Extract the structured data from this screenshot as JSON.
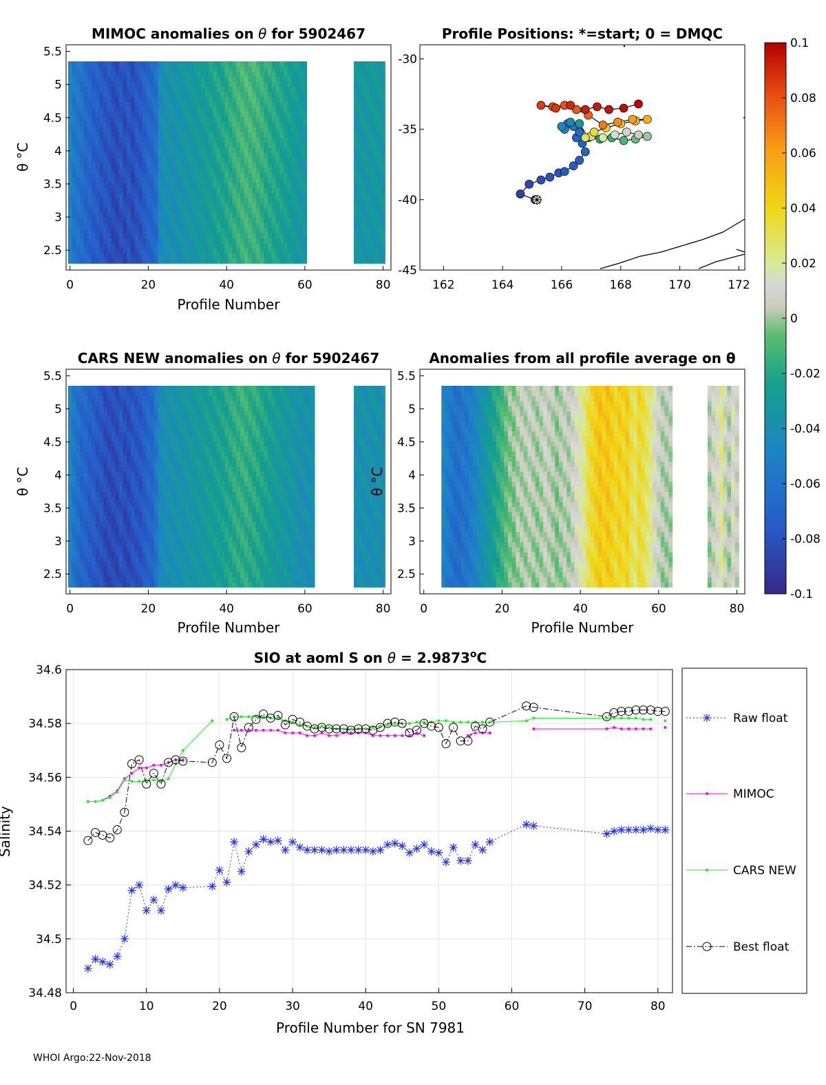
{
  "footer": "WHOI Argo:22-Nov-2018",
  "panels": {
    "mimoc": {
      "title_prefix": "MIMOC anomalies on",
      "title_suffix": " for 5902467",
      "ylabel": "θ °C",
      "xlabel": "Profile Number",
      "xticks": [
        "0",
        "20",
        "40",
        "60",
        "80"
      ],
      "yticks": [
        "2.5",
        "3",
        "3.5",
        "4",
        "4.5",
        "5",
        "5.5"
      ]
    },
    "positions": {
      "title": "Profile Positions: *=start; 0 = DMQC",
      "xticks": [
        "162",
        "164",
        "166",
        "168",
        "170",
        "172"
      ],
      "yticks": [
        "-30",
        "-35",
        "-40",
        "-45"
      ]
    },
    "cars": {
      "title_prefix": "CARS NEW anomalies on",
      "title_suffix": " for 5902467",
      "ylabel": "θ °C",
      "xlabel": "Profile Number",
      "xticks": [
        "0",
        "20",
        "40",
        "60",
        "80"
      ],
      "yticks": [
        "2.5",
        "3",
        "3.5",
        "4",
        "4.5",
        "5",
        "5.5"
      ]
    },
    "allavg": {
      "title": "Anomalies from all profile average on θ",
      "ylabel": "θ °C",
      "xlabel": "Profile Number",
      "xticks": [
        "0",
        "20",
        "40",
        "60",
        "80"
      ],
      "yticks": [
        "2.5",
        "3",
        "3.5",
        "4",
        "4.5",
        "5",
        "5.5"
      ]
    },
    "colorbar": {
      "ticks": [
        "0.1",
        "0.08",
        "0.06",
        "0.04",
        "0.02",
        "0",
        "-0.02",
        "-0.04",
        "-0.06",
        "-0.08",
        "-0.1"
      ]
    }
  },
  "chart_data": [
    {
      "type": "heatmap",
      "id": "mimoc",
      "title": "MIMOC anomalies on θ  for 5902467",
      "xlabel": "Profile Number",
      "ylabel": "θ °C",
      "xlim": [
        -1,
        82
      ],
      "ylim": [
        2.2,
        5.6
      ],
      "clim": [
        -0.1,
        0.1
      ],
      "profile_anomaly": [
        -0.05,
        -0.06,
        -0.06,
        -0.065,
        -0.07,
        -0.07,
        -0.075,
        -0.075,
        -0.08,
        -0.08,
        -0.08,
        -0.085,
        -0.085,
        -0.08,
        -0.085,
        -0.08,
        -0.085,
        -0.08,
        -0.08,
        -0.075,
        -0.07,
        -0.07,
        -0.065,
        -0.045,
        -0.04,
        -0.04,
        -0.04,
        -0.04,
        -0.038,
        -0.036,
        -0.035,
        -0.034,
        -0.034,
        -0.032,
        -0.03,
        -0.03,
        -0.028,
        -0.026,
        -0.025,
        -0.025,
        -0.022,
        -0.02,
        -0.018,
        -0.016,
        -0.015,
        -0.014,
        -0.014,
        -0.015,
        -0.016,
        -0.018,
        -0.02,
        -0.022,
        -0.023,
        -0.024,
        -0.025,
        -0.027,
        -0.028,
        -0.03,
        -0.032,
        -0.033,
        -0.034,
        null,
        null,
        null,
        null,
        null,
        null,
        null,
        null,
        null,
        null,
        null,
        null,
        -0.035,
        -0.035,
        -0.035,
        -0.034,
        -0.034,
        -0.034,
        -0.034,
        -0.034
      ]
    },
    {
      "type": "scatter",
      "id": "positions",
      "title": "Profile Positions: *=start; 0 = DMQC",
      "xlim": [
        161.2,
        172.2
      ],
      "ylim": [
        -45,
        -29
      ],
      "lon": [
        165.1,
        164.6,
        164.9,
        165.3,
        165.6,
        165.9,
        166.1,
        166.4,
        166.6,
        166.8,
        166.7,
        166.5,
        166.6,
        166.4,
        166.2,
        166.1,
        166.0,
        166.3,
        166.6,
        166.9,
        167.3,
        167.7,
        168.1,
        168.5,
        168.9,
        168.6,
        168.2,
        167.8,
        167.4,
        167.0,
        166.8,
        167.1,
        167.5,
        168.0,
        168.5,
        168.9,
        168.4,
        167.9,
        167.4,
        166.9,
        166.5,
        166.1,
        165.7,
        165.3,
        165.8,
        166.3,
        166.8,
        167.2,
        167.6,
        168.1,
        168.6
      ],
      "lat": [
        -40.0,
        -39.6,
        -38.9,
        -38.6,
        -38.4,
        -38.1,
        -38.0,
        -37.6,
        -37.2,
        -36.6,
        -36.0,
        -35.6,
        -35.2,
        -34.8,
        -34.6,
        -35.0,
        -34.8,
        -34.5,
        -34.6,
        -35.6,
        -35.7,
        -35.6,
        -35.8,
        -35.7,
        -35.5,
        -35.4,
        -35.2,
        -35.4,
        -35.6,
        -35.5,
        -35.6,
        -35.2,
        -34.9,
        -34.6,
        -34.4,
        -34.3,
        -34.3,
        -34.5,
        -34.7,
        -34.0,
        -33.6,
        -33.3,
        -33.4,
        -33.3,
        -33.5,
        -33.3,
        -33.6,
        -33.4,
        -33.6,
        -33.5,
        -33.2
      ],
      "colorvalue": [
        -0.09,
        -0.088,
        -0.085,
        -0.082,
        -0.08,
        -0.078,
        -0.076,
        -0.074,
        -0.072,
        -0.07,
        -0.07,
        -0.068,
        -0.065,
        -0.06,
        -0.055,
        -0.05,
        -0.045,
        -0.04,
        -0.03,
        -0.025,
        -0.02,
        -0.015,
        -0.01,
        -0.005,
        0.0,
        0.005,
        0.01,
        0.015,
        0.02,
        0.025,
        0.03,
        0.035,
        0.04,
        0.045,
        0.05,
        0.055,
        0.06,
        0.065,
        0.07,
        0.075,
        0.078,
        0.08,
        0.082,
        0.085,
        0.087,
        0.09,
        0.092,
        0.094,
        0.095,
        0.097,
        0.098
      ]
    },
    {
      "type": "heatmap",
      "id": "cars",
      "title": "CARS NEW anomalies on θ for 5902467",
      "xlabel": "Profile Number",
      "ylabel": "θ °C",
      "xlim": [
        -1,
        82
      ],
      "ylim": [
        2.2,
        5.6
      ],
      "clim": [
        -0.1,
        0.1
      ],
      "profile_anomaly": [
        -0.05,
        -0.06,
        -0.065,
        -0.07,
        -0.07,
        -0.075,
        -0.075,
        -0.08,
        -0.08,
        -0.085,
        -0.085,
        -0.085,
        -0.085,
        -0.08,
        -0.085,
        -0.085,
        -0.08,
        -0.08,
        -0.08,
        -0.075,
        -0.07,
        -0.07,
        -0.06,
        -0.045,
        -0.042,
        -0.04,
        -0.04,
        -0.04,
        -0.038,
        -0.037,
        -0.036,
        -0.035,
        -0.034,
        -0.033,
        -0.032,
        -0.03,
        -0.029,
        -0.028,
        -0.027,
        -0.026,
        -0.024,
        -0.022,
        -0.02,
        -0.019,
        -0.018,
        -0.018,
        -0.02,
        -0.021,
        -0.022,
        -0.024,
        -0.026,
        -0.028,
        -0.03,
        -0.031,
        -0.032,
        -0.034,
        -0.035,
        -0.036,
        -0.038,
        -0.04,
        -0.04,
        -0.04,
        -0.04,
        null,
        null,
        null,
        null,
        null,
        null,
        null,
        null,
        null,
        null,
        -0.04,
        -0.04,
        -0.04,
        -0.04,
        -0.04,
        -0.04,
        -0.04,
        -0.04
      ]
    },
    {
      "type": "heatmap",
      "id": "allavg",
      "title": "Anomalies from all profile average on θ",
      "xlabel": "Profile Number",
      "ylabel": "θ °C",
      "xlim": [
        -1,
        82
      ],
      "ylim": [
        2.2,
        5.6
      ],
      "clim": [
        -0.1,
        0.1
      ],
      "profile_anomaly": [
        null,
        null,
        null,
        null,
        null,
        -0.05,
        -0.055,
        -0.06,
        -0.065,
        -0.065,
        -0.06,
        -0.06,
        -0.055,
        -0.05,
        -0.045,
        -0.04,
        -0.035,
        -0.03,
        -0.025,
        -0.02,
        -0.015,
        -0.01,
        -0.005,
        -0.005,
        0.0,
        0.0,
        0.0,
        0.002,
        0.0,
        -0.002,
        0.0,
        0.004,
        0.002,
        0.0,
        -0.004,
        0.0,
        0.002,
        0.0,
        0.005,
        0.01,
        0.015,
        0.02,
        0.03,
        0.035,
        0.04,
        0.045,
        0.04,
        0.045,
        0.04,
        0.035,
        0.04,
        0.035,
        0.04,
        0.03,
        0.025,
        0.035,
        0.03,
        0.025,
        0.02,
        0.01,
        0.005,
        0.0,
        0.0,
        0.0,
        null,
        null,
        null,
        null,
        null,
        null,
        null,
        null,
        null,
        0.0,
        0.005,
        0.01,
        0.02,
        0.005,
        0.0,
        0.01,
        0.005
      ]
    },
    {
      "type": "line",
      "id": "salinity",
      "title": "SIO at aoml S on θ = 2.9873°C",
      "xlabel": "Profile Number for SN 7981",
      "ylabel": "Salinity",
      "xlim": [
        -1,
        82
      ],
      "ylim": [
        34.48,
        34.6
      ],
      "xticks": [
        0,
        10,
        20,
        30,
        40,
        50,
        60,
        70,
        80
      ],
      "yticks": [
        34.48,
        34.5,
        34.52,
        34.54,
        34.56,
        34.58,
        34.6
      ],
      "series": [
        {
          "name": "Raw float",
          "color": "#2230ff",
          "marker": "asterisk",
          "linestyle": "dotted",
          "x": [
            2,
            3,
            4,
            5,
            6,
            7,
            8,
            9,
            10,
            11,
            12,
            13,
            14,
            15,
            19,
            20,
            21,
            22,
            23,
            24,
            25,
            26,
            27,
            28,
            29,
            30,
            31,
            32,
            33,
            34,
            35,
            36,
            37,
            38,
            39,
            40,
            41,
            42,
            43,
            44,
            45,
            46,
            47,
            48,
            49,
            50,
            51,
            52,
            53,
            54,
            55,
            56,
            57,
            62,
            63,
            73,
            74,
            75,
            76,
            77,
            78,
            79,
            80,
            81
          ],
          "y": [
            34.489,
            34.4925,
            34.4915,
            34.4905,
            34.4935,
            34.5,
            34.518,
            34.52,
            34.5105,
            34.5145,
            34.5105,
            34.5185,
            34.52,
            34.519,
            34.5195,
            34.5255,
            34.521,
            34.536,
            34.525,
            34.5325,
            34.535,
            34.537,
            34.536,
            34.5365,
            34.533,
            34.536,
            34.534,
            34.533,
            34.533,
            34.533,
            34.5325,
            34.533,
            34.533,
            34.533,
            34.533,
            34.533,
            34.5325,
            34.533,
            34.535,
            34.5355,
            34.5345,
            34.532,
            34.5335,
            34.535,
            34.5325,
            34.532,
            34.5285,
            34.534,
            34.529,
            34.529,
            34.535,
            34.533,
            34.536,
            34.5425,
            34.542,
            34.539,
            34.54,
            34.5405,
            34.5405,
            34.5405,
            34.5405,
            34.541,
            34.5405,
            34.5405
          ]
        },
        {
          "name": "MIMOC",
          "color": "#ff00ff",
          "marker": "dot",
          "linestyle": "solid",
          "x": [
            2,
            3,
            4,
            5,
            6,
            7,
            8,
            9,
            10,
            11,
            12,
            13,
            14,
            15,
            null,
            22,
            23,
            24,
            25,
            26,
            27,
            28,
            29,
            30,
            31,
            32,
            33,
            34,
            35,
            36,
            37,
            38,
            39,
            40,
            41,
            42,
            43,
            44,
            45,
            46,
            47,
            48,
            null,
            54,
            55,
            56,
            57,
            null,
            63,
            73,
            74,
            75,
            76,
            77,
            78,
            79,
            null,
            81
          ],
          "y": [
            34.551,
            34.551,
            34.5515,
            34.553,
            34.555,
            34.5595,
            34.5615,
            34.5635,
            34.5635,
            34.5645,
            34.5645,
            34.5655,
            34.5665,
            34.5665,
            null,
            34.5775,
            34.5775,
            34.5775,
            34.5775,
            34.5775,
            34.5775,
            34.5775,
            34.5765,
            34.5765,
            34.5765,
            34.5755,
            34.5755,
            34.5765,
            34.5755,
            34.5755,
            34.5765,
            34.5765,
            34.5765,
            34.5765,
            34.5755,
            34.5755,
            34.5755,
            34.5755,
            34.5755,
            34.5755,
            34.5765,
            34.5755,
            null,
            34.5755,
            34.5765,
            34.5765,
            34.5765,
            null,
            34.578,
            34.578,
            34.5785,
            34.578,
            34.578,
            34.578,
            34.578,
            34.578,
            null,
            34.5785
          ]
        },
        {
          "name": "CARS NEW",
          "color": "#22ee22",
          "marker": "dot",
          "linestyle": "solid",
          "x": [
            2,
            3,
            4,
            5,
            6,
            7,
            8,
            9,
            10,
            11,
            12,
            13,
            14,
            15,
            19,
            null,
            21,
            22,
            23,
            24,
            25,
            26,
            27,
            28,
            29,
            30,
            31,
            32,
            33,
            34,
            35,
            36,
            37,
            38,
            39,
            40,
            41,
            42,
            43,
            44,
            45,
            46,
            47,
            48,
            49,
            50,
            51,
            52,
            53,
            54,
            55,
            56,
            57,
            62,
            63,
            73,
            74,
            75,
            76,
            77,
            78,
            79,
            null,
            81
          ],
          "y": [
            34.551,
            34.551,
            34.5515,
            34.5525,
            34.5545,
            34.559,
            34.5585,
            34.5585,
            34.5585,
            34.559,
            34.5585,
            34.5595,
            34.565,
            34.57,
            34.581,
            null,
            34.5815,
            34.5825,
            34.5825,
            34.5825,
            34.5825,
            34.5825,
            34.582,
            34.582,
            34.581,
            34.5805,
            34.5795,
            34.579,
            34.5785,
            34.579,
            34.5785,
            34.578,
            34.578,
            34.578,
            34.578,
            34.578,
            34.5785,
            34.579,
            34.5795,
            34.58,
            34.58,
            34.58,
            34.5805,
            34.5805,
            34.5805,
            34.581,
            34.581,
            34.5805,
            34.5805,
            34.5805,
            34.5805,
            34.5805,
            34.5805,
            34.581,
            34.582,
            34.582,
            34.582,
            34.582,
            34.582,
            34.582,
            34.5815,
            34.5815,
            null,
            34.581
          ]
        },
        {
          "name": "Best float",
          "color": "#000000",
          "marker": "circle",
          "linestyle": "dashdot",
          "x": [
            2,
            3,
            4,
            5,
            6,
            7,
            8,
            9,
            10,
            11,
            12,
            13,
            14,
            15,
            19,
            20,
            21,
            22,
            23,
            24,
            25,
            26,
            27,
            28,
            29,
            30,
            31,
            32,
            33,
            34,
            35,
            36,
            37,
            38,
            39,
            40,
            41,
            42,
            43,
            44,
            45,
            46,
            47,
            48,
            49,
            50,
            51,
            52,
            53,
            54,
            55,
            56,
            57,
            62,
            63,
            73,
            74,
            75,
            76,
            77,
            78,
            79,
            80,
            81
          ],
          "y": [
            34.5365,
            34.5395,
            34.5385,
            34.5375,
            34.5405,
            34.547,
            34.565,
            34.5665,
            34.5575,
            34.5615,
            34.5575,
            34.5655,
            34.5665,
            34.566,
            34.5655,
            34.572,
            34.567,
            34.5825,
            34.571,
            34.5785,
            34.5815,
            34.5835,
            34.582,
            34.583,
            34.5795,
            34.5815,
            34.5805,
            34.579,
            34.578,
            34.5785,
            34.578,
            34.578,
            34.578,
            34.5775,
            34.578,
            34.578,
            34.5775,
            34.5785,
            34.58,
            34.5805,
            34.58,
            34.5765,
            34.5775,
            34.58,
            34.579,
            34.5785,
            34.5725,
            34.5785,
            34.5735,
            34.5735,
            34.579,
            34.578,
            34.5805,
            34.5865,
            34.586,
            34.5825,
            34.584,
            34.5845,
            34.5845,
            34.585,
            34.585,
            34.585,
            34.5845,
            34.5845
          ]
        }
      ]
    }
  ]
}
